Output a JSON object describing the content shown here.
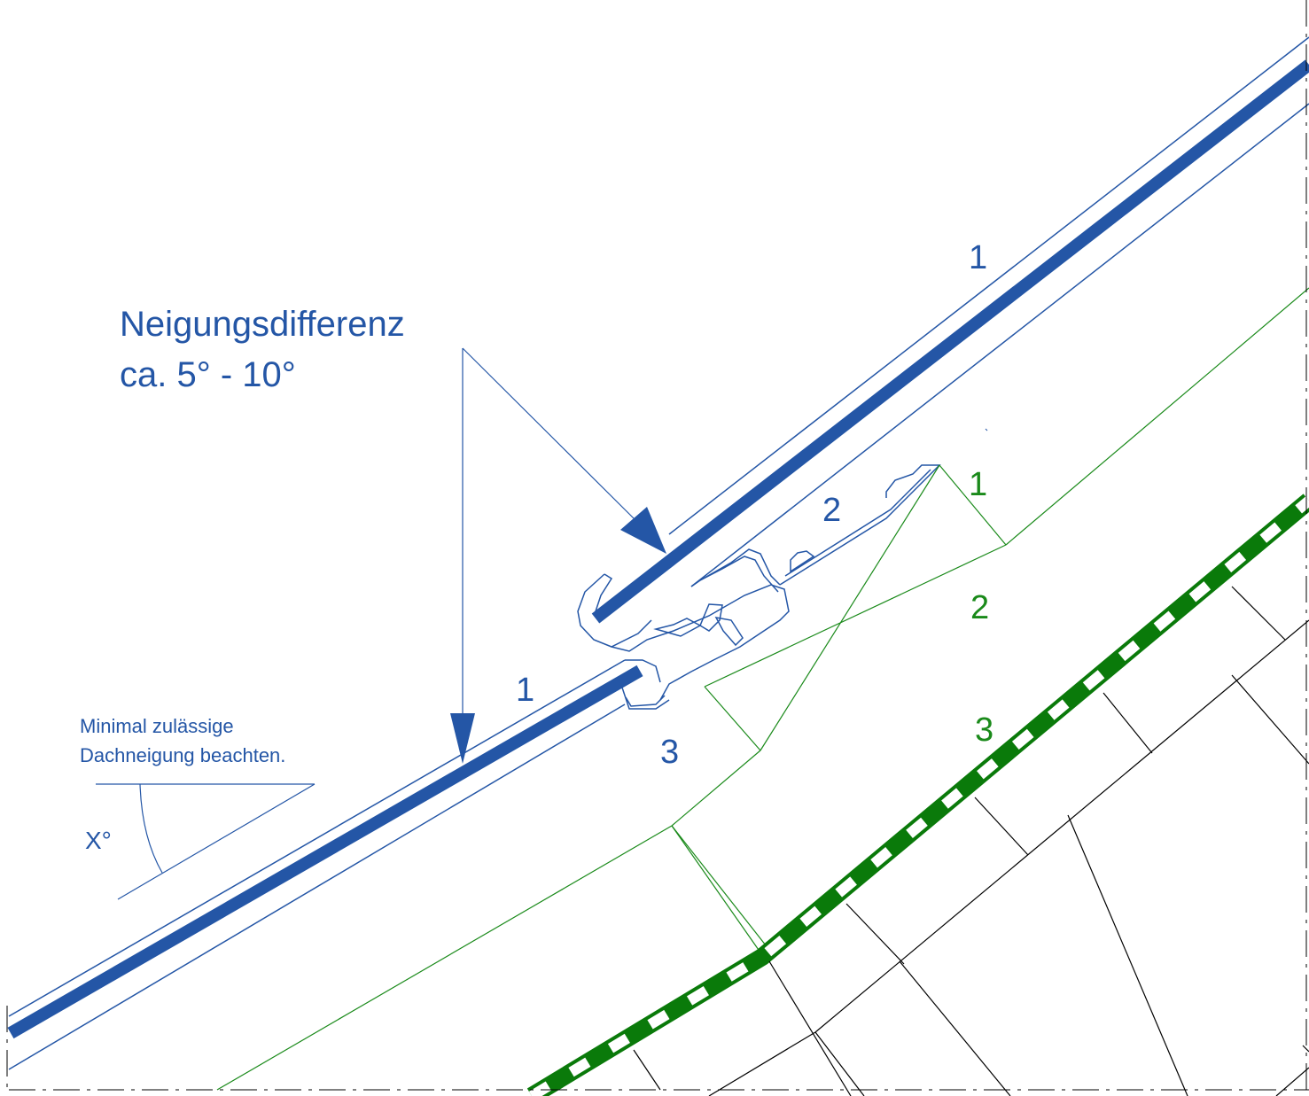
{
  "colors": {
    "blue": "#2456a6",
    "green": "#1a8a1a",
    "dark_green": "#0a7a0a",
    "black": "#000000"
  },
  "title": {
    "line1": "Neigungsdifferenz",
    "line2": "ca. 5° - 10°"
  },
  "note": {
    "line1": "Minimal zulässige",
    "line2": "Dachneigung beachten."
  },
  "angle_label": "X°",
  "blue_labels": {
    "upper_1": "1",
    "mid_2": "2",
    "lower_1": "1",
    "lower_3": "3"
  },
  "green_labels": {
    "g1": "1",
    "g2": "2",
    "g3": "3"
  }
}
